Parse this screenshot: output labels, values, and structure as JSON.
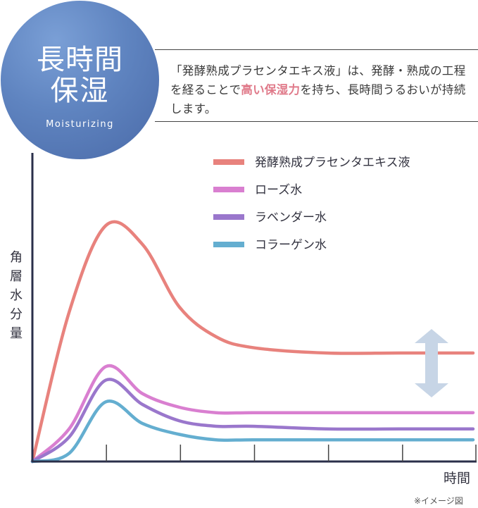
{
  "badge": {
    "title_line1": "長時間",
    "title_line2": "保湿",
    "subtitle": "Moisturizing"
  },
  "description": {
    "part1": "「発酵熟成プラセンタエキス液」は、発酵・熟成の工程を経ることで",
    "highlight": "高い保湿力",
    "part2": "を持ち、長時間うるおいが持続します。"
  },
  "colors": {
    "badge": "#5f84c0",
    "highlight": "#e07a8a",
    "axis": "#2a2f4a",
    "arrow": "#c7d5e6"
  },
  "chart_data": {
    "type": "line",
    "title": "",
    "xlabel": "時間",
    "ylabel": "角層水分量",
    "x_ticks_count": 6,
    "x": [
      0,
      0.5,
      1,
      1.5,
      2,
      2.5,
      3,
      4,
      5,
      6
    ],
    "xlim": [
      0,
      6
    ],
    "ylim": [
      0,
      100
    ],
    "grid": false,
    "legend_position": "top-right",
    "series": [
      {
        "name": "発酵熟成プラセンタエキス液",
        "color": "#e8827d",
        "values": [
          0,
          55,
          87,
          80,
          57,
          46,
          42,
          40,
          40,
          40
        ]
      },
      {
        "name": "ローズ水",
        "color": "#d97fd0",
        "values": [
          0,
          12,
          35,
          25,
          20,
          18,
          18,
          18,
          18,
          18
        ]
      },
      {
        "name": "ラベンダー水",
        "color": "#9a77cc",
        "values": [
          0,
          9,
          30,
          21,
          15,
          13,
          13,
          12,
          12,
          12
        ]
      },
      {
        "name": "コラーゲン水",
        "color": "#64aed0",
        "values": [
          0,
          3,
          22,
          14,
          10,
          8,
          8,
          8,
          8,
          8
        ]
      }
    ],
    "annotation": "double-arrow between placenta curve and others",
    "note": "※イメージ図"
  }
}
